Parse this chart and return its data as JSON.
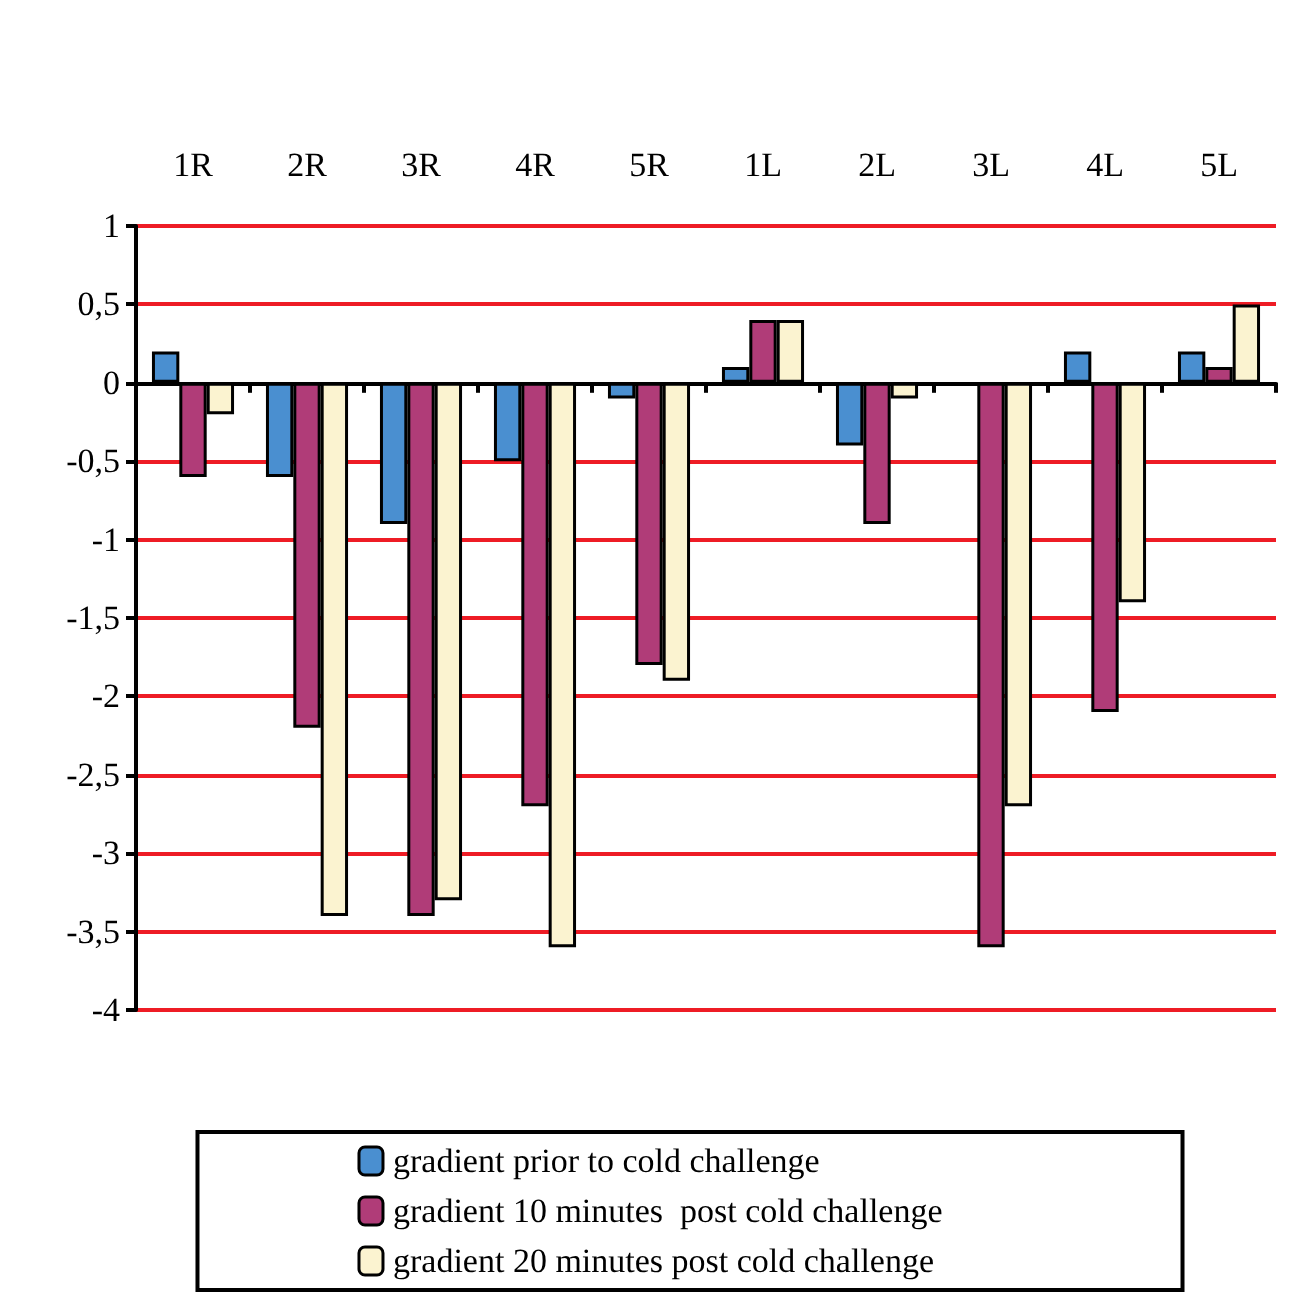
{
  "chart_data": {
    "type": "bar",
    "categories": [
      "1R",
      "2R",
      "3R",
      "4R",
      "5R",
      "1L",
      "2L",
      "3L",
      "4L",
      "5L"
    ],
    "series": [
      {
        "name": "gradient prior to cold challenge",
        "color": "#4a8fd0",
        "values": [
          0.2,
          -0.6,
          -0.9,
          -0.5,
          -0.1,
          0.1,
          -0.4,
          null,
          0.2,
          0.2
        ]
      },
      {
        "name": "gradient 10 minutes  post cold challenge",
        "color": "#b03c78",
        "values": [
          -0.6,
          -2.2,
          -3.4,
          -2.7,
          -1.8,
          0.4,
          -0.9,
          -3.6,
          -2.1,
          0.1
        ]
      },
      {
        "name": "gradient 20 minutes post cold challenge",
        "color": "#fbf3d0",
        "values": [
          -0.2,
          -3.4,
          -3.3,
          -3.6,
          -1.9,
          0.4,
          -0.1,
          -2.7,
          -1.4,
          0.5
        ]
      }
    ],
    "ylim": [
      -4,
      1
    ],
    "yticks": [
      {
        "value": -4,
        "label": "-4"
      },
      {
        "value": -3.5,
        "label": "-3,5"
      },
      {
        "value": -3,
        "label": "-3"
      },
      {
        "value": -2.5,
        "label": "-2,5"
      },
      {
        "value": -2,
        "label": "-2"
      },
      {
        "value": -1.5,
        "label": "-1,5"
      },
      {
        "value": -1,
        "label": "-1"
      },
      {
        "value": -0.5,
        "label": "-0,5"
      },
      {
        "value": 0,
        "label": "0"
      },
      {
        "value": 0.5,
        "label": "0,5"
      },
      {
        "value": 1,
        "label": "1"
      }
    ],
    "grid": "y",
    "legend": "bottom"
  }
}
